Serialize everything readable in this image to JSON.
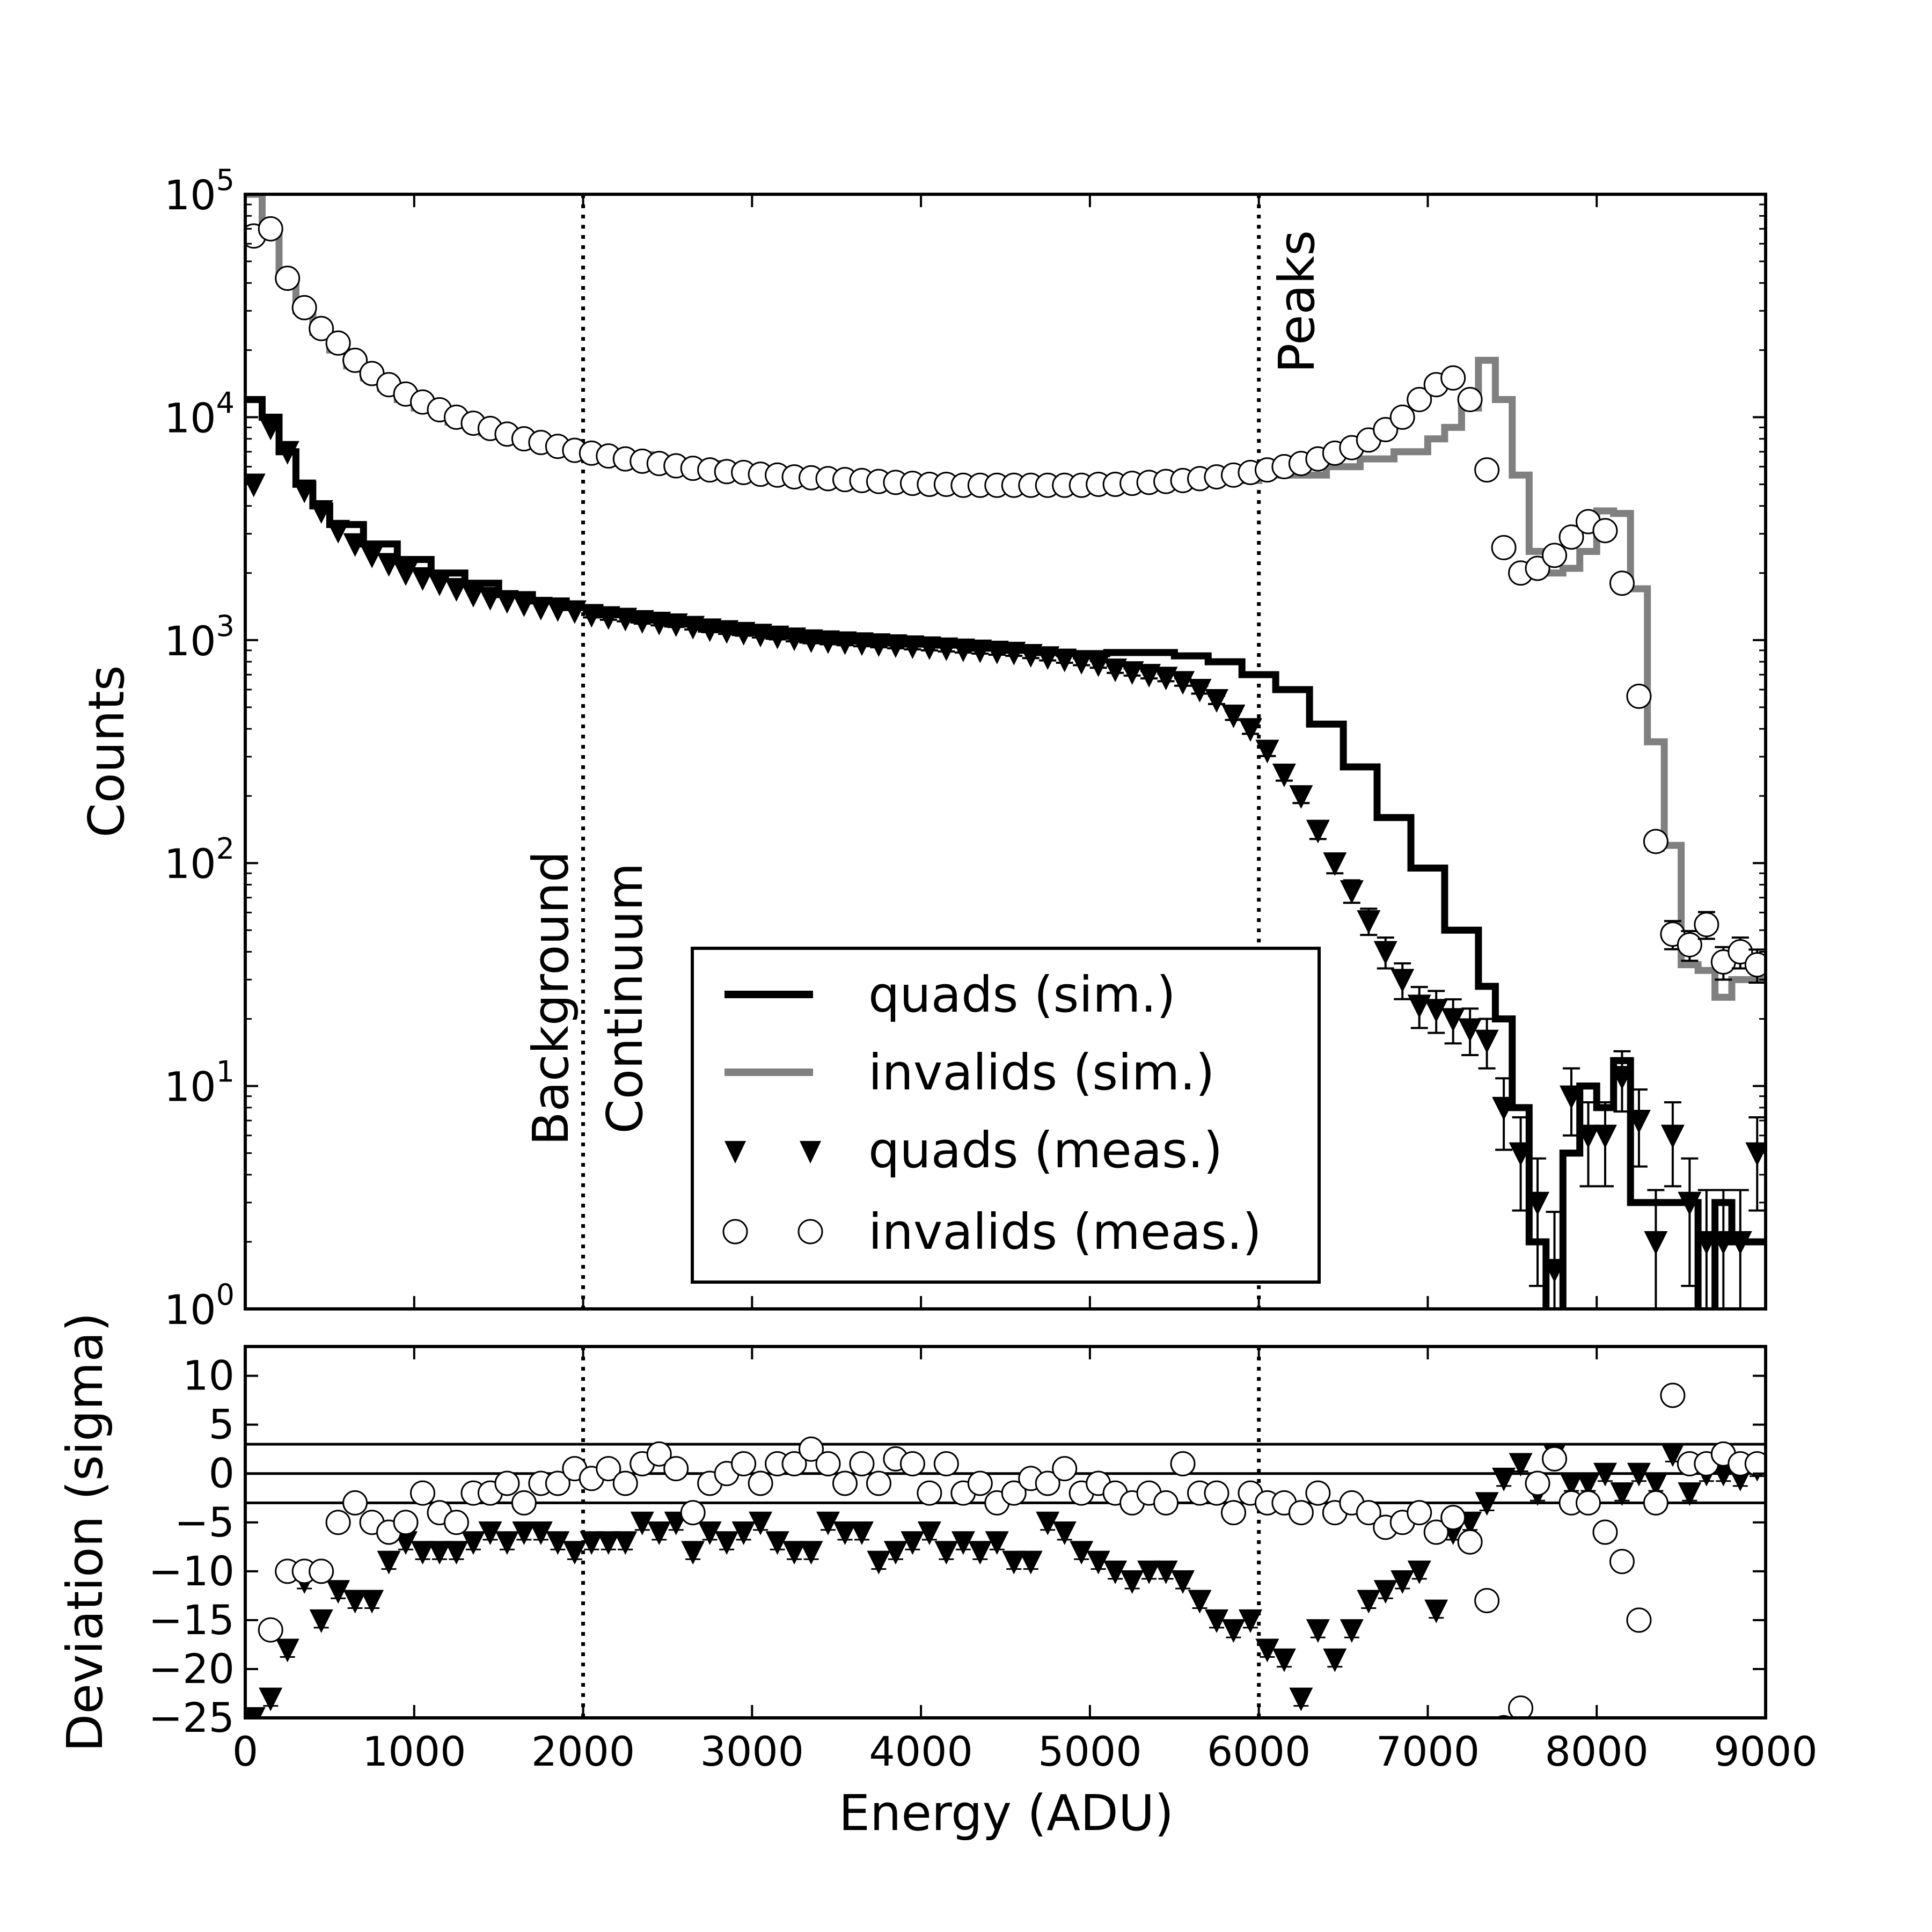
{
  "chart_data": [
    {
      "type": "line",
      "panel": "counts",
      "title": "",
      "xlabel": "",
      "ylabel": "Counts",
      "yscale": "log",
      "xlim": [
        0,
        9000
      ],
      "ylim": [
        1,
        100000
      ],
      "x_ticks": [
        0,
        1000,
        2000,
        3000,
        4000,
        5000,
        6000,
        7000,
        8000,
        9000
      ],
      "y_ticks": [
        {
          "value": 1,
          "base": "10",
          "exp": "0"
        },
        {
          "value": 10,
          "base": "10",
          "exp": "1"
        },
        {
          "value": 100,
          "base": "10",
          "exp": "2"
        },
        {
          "value": 1000,
          "base": "10",
          "exp": "3"
        },
        {
          "value": 10000,
          "base": "10",
          "exp": "4"
        },
        {
          "value": 100000,
          "base": "10",
          "exp": "5"
        }
      ],
      "vlines": [
        2000,
        6000
      ],
      "annotations": [
        {
          "text": "Background",
          "x": 2000,
          "side": "left"
        },
        {
          "text": "Continuum",
          "x": 2000,
          "side": "right"
        },
        {
          "text": "Peaks",
          "x": 6000,
          "side": "right"
        }
      ],
      "legend": {
        "position": "lower-center-right",
        "entries": [
          "quads (sim.)",
          "invalids (sim.)",
          "quads (meas.)",
          "invalids (meas.)"
        ]
      },
      "series": [
        {
          "name": "quads (sim.)",
          "style": "step",
          "color": "#000000",
          "x": [
            0,
            100,
            200,
            300,
            400,
            500,
            700,
            900,
            1100,
            1300,
            1500,
            1700,
            1900,
            2100,
            2300,
            2500,
            2700,
            2900,
            3100,
            3300,
            3500,
            3700,
            3900,
            4100,
            4300,
            4500,
            4700,
            4900,
            5100,
            5300,
            5500,
            5700,
            5900,
            6100,
            6300,
            6500,
            6700,
            6900,
            7100,
            7300,
            7400,
            7500,
            7600,
            7700,
            7800,
            7900,
            8000,
            8100,
            8200,
            8300,
            8400,
            8500,
            8600,
            8700,
            8800,
            8900
          ],
          "y": [
            12000,
            10000,
            7000,
            5000,
            4000,
            3300,
            2700,
            2300,
            2000,
            1800,
            1600,
            1500,
            1400,
            1300,
            1230,
            1180,
            1120,
            1080,
            1040,
            1000,
            990,
            970,
            960,
            950,
            920,
            900,
            880,
            870,
            880,
            880,
            850,
            800,
            700,
            600,
            420,
            270,
            160,
            95,
            50,
            28,
            20,
            8,
            2,
            0.9,
            5,
            10,
            8,
            13,
            3,
            3,
            3,
            3,
            0.9,
            3,
            2,
            2
          ]
        },
        {
          "name": "invalids (sim.)",
          "style": "step",
          "color": "#808080",
          "x": [
            0,
            100,
            200,
            300,
            400,
            500,
            600,
            700,
            800,
            900,
            1000,
            1200,
            1400,
            1600,
            1800,
            2000,
            2400,
            2800,
            3200,
            3600,
            4000,
            4400,
            4800,
            5200,
            5600,
            6000,
            6400,
            6600,
            6800,
            7000,
            7100,
            7200,
            7300,
            7400,
            7500,
            7600,
            7700,
            7800,
            7900,
            8000,
            8100,
            8200,
            8300,
            8400,
            8500,
            8600,
            8700,
            8800,
            8900
          ],
          "y": [
            100000,
            70000,
            42000,
            30000,
            24000,
            20000,
            17000,
            15000,
            13500,
            12000,
            11000,
            9500,
            8500,
            7800,
            7300,
            6800,
            6200,
            5800,
            5500,
            5200,
            5000,
            4900,
            4900,
            5000,
            5200,
            5500,
            6000,
            6500,
            7000,
            8000,
            9000,
            11000,
            18000,
            12000,
            5500,
            2500,
            2000,
            2100,
            2500,
            3800,
            3700,
            1700,
            350,
            120,
            35,
            33,
            25,
            30,
            30
          ]
        },
        {
          "name": "quads (meas.)",
          "style": "marker",
          "marker": "triangle-down",
          "x": [
            50,
            150,
            250,
            350,
            450,
            550,
            650,
            750,
            850,
            950,
            1050,
            1150,
            1250,
            1350,
            1450,
            1550,
            1650,
            1750,
            1850,
            1950,
            2050,
            2150,
            2250,
            2350,
            2450,
            2550,
            2650,
            2750,
            2850,
            2950,
            3050,
            3150,
            3250,
            3350,
            3450,
            3550,
            3650,
            3750,
            3850,
            3950,
            4050,
            4150,
            4250,
            4350,
            4450,
            4550,
            4650,
            4750,
            4850,
            4950,
            5050,
            5150,
            5250,
            5350,
            5450,
            5550,
            5650,
            5750,
            5850,
            5950,
            6050,
            6150,
            6250,
            6350,
            6450,
            6550,
            6650,
            6750,
            6850,
            6950,
            7050,
            7150,
            7250,
            7350,
            7450,
            7550,
            7650,
            7750,
            7850,
            7950,
            8050,
            8150,
            8250,
            8350,
            8450,
            8550,
            8650,
            8750,
            8850,
            8950
          ],
          "y": [
            5000,
            9000,
            7000,
            4700,
            3800,
            3100,
            2700,
            2400,
            2200,
            2000,
            1900,
            1800,
            1700,
            1600,
            1550,
            1500,
            1450,
            1400,
            1380,
            1350,
            1300,
            1270,
            1250,
            1220,
            1200,
            1180,
            1150,
            1120,
            1100,
            1080,
            1060,
            1040,
            1020,
            1000,
            990,
            980,
            970,
            960,
            950,
            940,
            930,
            920,
            910,
            900,
            890,
            880,
            860,
            840,
            820,
            800,
            780,
            740,
            720,
            700,
            680,
            650,
            600,
            540,
            460,
            400,
            320,
            250,
            200,
            140,
            100,
            75,
            55,
            40,
            30,
            23,
            22,
            20,
            18,
            16,
            8,
            5,
            3,
            1.5,
            9,
            6,
            6,
            11,
            7,
            2,
            6,
            3,
            2,
            2,
            2,
            5
          ],
          "errors_shown": true
        },
        {
          "name": "invalids (meas.)",
          "style": "marker",
          "marker": "open-circle",
          "x": [
            50,
            150,
            250,
            350,
            450,
            550,
            650,
            750,
            850,
            950,
            1050,
            1150,
            1250,
            1350,
            1450,
            1550,
            1650,
            1750,
            1850,
            1950,
            2050,
            2150,
            2250,
            2350,
            2450,
            2550,
            2650,
            2750,
            2850,
            2950,
            3050,
            3150,
            3250,
            3350,
            3450,
            3550,
            3650,
            3750,
            3850,
            3950,
            4050,
            4150,
            4250,
            4350,
            4450,
            4550,
            4650,
            4750,
            4850,
            4950,
            5050,
            5150,
            5250,
            5350,
            5450,
            5550,
            5650,
            5750,
            5850,
            5950,
            6050,
            6150,
            6250,
            6350,
            6450,
            6550,
            6650,
            6750,
            6850,
            6950,
            7050,
            7150,
            7250,
            7350,
            7450,
            7550,
            7650,
            7750,
            7850,
            7950,
            8050,
            8150,
            8250,
            8350,
            8450,
            8550,
            8650,
            8750,
            8850,
            8950
          ],
          "y": [
            65000,
            70000,
            42000,
            31000,
            25000,
            21500,
            18000,
            15700,
            14000,
            12700,
            11700,
            10800,
            10000,
            9400,
            8900,
            8400,
            8000,
            7700,
            7400,
            7100,
            6900,
            6700,
            6500,
            6350,
            6200,
            6050,
            5900,
            5800,
            5700,
            5650,
            5550,
            5500,
            5400,
            5350,
            5300,
            5250,
            5200,
            5150,
            5100,
            5050,
            5000,
            5000,
            4950,
            4950,
            4950,
            4950,
            4950,
            4950,
            4950,
            4950,
            5000,
            5000,
            5050,
            5100,
            5150,
            5200,
            5300,
            5400,
            5500,
            5650,
            5800,
            6000,
            6200,
            6500,
            6900,
            7300,
            7900,
            8800,
            10000,
            12000,
            14000,
            15000,
            12000,
            5800,
            2600,
            2000,
            2100,
            2400,
            2900,
            3400,
            3100,
            1800,
            560,
            125,
            48,
            43,
            53,
            36,
            40,
            35
          ],
          "errors_shown": true
        }
      ]
    },
    {
      "type": "scatter",
      "panel": "deviation",
      "title": "",
      "xlabel": "Energy (ADU)",
      "ylabel": "Deviation (sigma)",
      "xlim": [
        0,
        9000
      ],
      "ylim": [
        -25,
        13
      ],
      "x_ticks": [
        0,
        1000,
        2000,
        3000,
        4000,
        5000,
        6000,
        7000,
        8000,
        9000
      ],
      "y_ticks": [
        10,
        5,
        0,
        -5,
        -10,
        -15,
        -20,
        -25
      ],
      "hlines": [
        3,
        0,
        -3
      ],
      "vlines": [
        2000,
        6000
      ],
      "series": [
        {
          "name": "quads (meas.)",
          "marker": "triangle-down",
          "x": [
            50,
            150,
            250,
            350,
            450,
            550,
            650,
            750,
            850,
            950,
            1050,
            1150,
            1250,
            1350,
            1450,
            1550,
            1650,
            1750,
            1850,
            1950,
            2050,
            2150,
            2250,
            2350,
            2450,
            2550,
            2650,
            2750,
            2850,
            2950,
            3050,
            3150,
            3250,
            3350,
            3450,
            3550,
            3650,
            3750,
            3850,
            3950,
            4050,
            4150,
            4250,
            4350,
            4450,
            4550,
            4650,
            4750,
            4850,
            4950,
            5050,
            5150,
            5250,
            5350,
            5450,
            5550,
            5650,
            5750,
            5850,
            5950,
            6050,
            6150,
            6250,
            6350,
            6450,
            6550,
            6650,
            6750,
            6850,
            6950,
            7050,
            7150,
            7250,
            7350,
            7450,
            7550,
            7650,
            7750,
            7850,
            7950,
            8050,
            8150,
            8250,
            8350,
            8450,
            8550,
            8650,
            8750,
            8850,
            8950
          ],
          "y": [
            -25,
            -23,
            -18,
            -11,
            -15,
            -12,
            -13,
            -13,
            -9,
            -7,
            -8,
            -8,
            -8,
            -7,
            -6,
            -7,
            -6,
            -6,
            -7,
            -8,
            -7,
            -7,
            -7,
            -5,
            -6,
            -5,
            -8,
            -6,
            -7,
            -6,
            -5,
            -7,
            -8,
            -8,
            -5,
            -6,
            -6,
            -9,
            -8,
            -7,
            -6,
            -8,
            -7,
            -8,
            -7,
            -9,
            -9,
            -5,
            -6,
            -8,
            -9,
            -10,
            -11,
            -10,
            -10,
            -11,
            -13,
            -15,
            -16,
            -15,
            -18,
            -19,
            -23,
            -16,
            -19,
            -16,
            -13,
            -12,
            -11,
            -10,
            -14,
            -6,
            -5,
            -3,
            -0.5,
            1,
            -2,
            2,
            -1,
            -1,
            0,
            -2,
            0,
            -1,
            2,
            -2,
            0,
            0,
            -0.5,
            0.5
          ],
          "errors_shown": true
        },
        {
          "name": "invalids (meas.)",
          "marker": "open-circle",
          "x": [
            50,
            150,
            250,
            350,
            450,
            550,
            650,
            750,
            850,
            950,
            1050,
            1150,
            1250,
            1350,
            1450,
            1550,
            1650,
            1750,
            1850,
            1950,
            2050,
            2150,
            2250,
            2350,
            2450,
            2550,
            2650,
            2750,
            2850,
            2950,
            3050,
            3150,
            3250,
            3350,
            3450,
            3550,
            3650,
            3750,
            3850,
            3950,
            4050,
            4150,
            4250,
            4350,
            4450,
            4550,
            4650,
            4750,
            4850,
            4950,
            5050,
            5150,
            5250,
            5350,
            5450,
            5550,
            5650,
            5750,
            5850,
            5950,
            6050,
            6150,
            6250,
            6350,
            6450,
            6550,
            6650,
            6750,
            6850,
            6950,
            7050,
            7150,
            7250,
            7350,
            7450,
            7550,
            7650,
            7750,
            7850,
            7950,
            8050,
            8150,
            8250,
            8350,
            8450,
            8550,
            8650,
            8750,
            8850,
            8950
          ],
          "y": [
            -26,
            -16,
            -10,
            -10,
            -10,
            -5,
            -3,
            -5,
            -6,
            -5,
            -2,
            -4,
            -5,
            -2,
            -2,
            -1,
            -3,
            -1,
            -1,
            0.5,
            -0.5,
            0.5,
            -1,
            1,
            2,
            0.5,
            -4,
            -1,
            0,
            1,
            -1,
            1,
            1,
            2.5,
            1,
            -1,
            1,
            -1,
            1.5,
            1,
            -2,
            1,
            -2,
            -1,
            -3,
            -2,
            -0.5,
            -1,
            0.5,
            -2,
            -1,
            -2,
            -3,
            -2,
            -3,
            1,
            -2,
            -2,
            -4,
            -2,
            -3,
            -3,
            -4,
            -2,
            -4,
            -3,
            -4,
            -5.5,
            -5,
            -4,
            -6,
            -4.5,
            -7,
            -13,
            -26,
            -24,
            -1,
            1.5,
            -3,
            -3,
            -6,
            -9,
            -15,
            -3,
            8,
            1,
            1,
            2,
            1,
            1
          ],
          "errors_shown": true
        }
      ]
    }
  ]
}
